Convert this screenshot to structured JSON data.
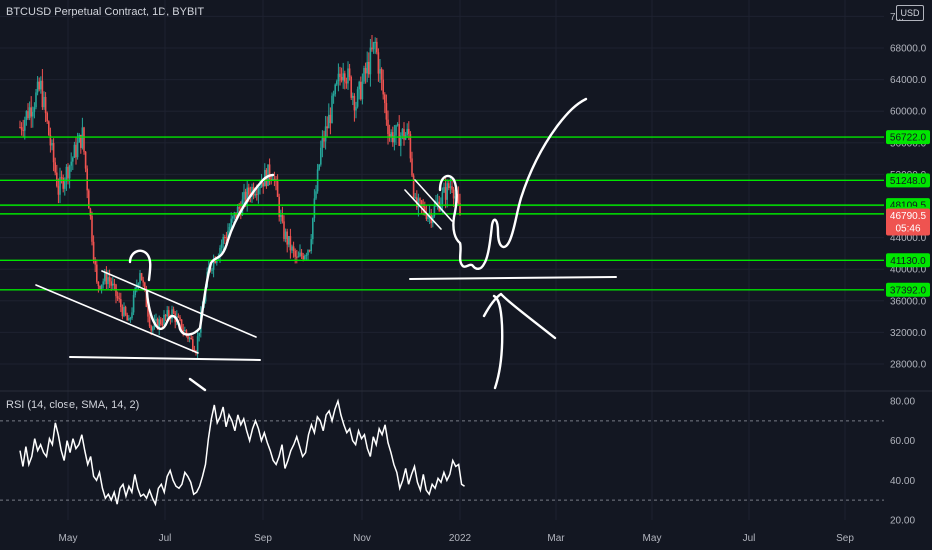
{
  "header": {
    "title": "BTCUSD Perpetual Contract, 1D, BYBIT",
    "currency": "USD"
  },
  "rsi": {
    "title": "RSI (14, close, SMA, 14, 2)"
  },
  "colors": {
    "background": "#131722",
    "level_line": "#00e600",
    "up": "#26a69a",
    "down": "#ef5350",
    "drawing": "#ffffff",
    "rsi_line": "#ffffff"
  },
  "chart_data": [
    {
      "type": "candlestick",
      "title": "BTCUSD Perpetual Contract, 1D, BYBIT",
      "y_axis": {
        "labels": [
          "7...",
          "68000.0",
          "64000.0",
          "60000.0",
          "56000.0",
          "52000.0",
          "48000.0",
          "44000.0",
          "40000.0",
          "36000.0",
          "32000.0",
          "28000.0"
        ],
        "values": [
          72000,
          68000,
          64000,
          60000,
          56000,
          52000,
          48000,
          44000,
          40000,
          36000,
          32000,
          28000
        ]
      },
      "x_axis": {
        "labels": [
          "May",
          "Jul",
          "Sep",
          "Nov",
          "2022",
          "Mar",
          "May",
          "Jul",
          "Sep"
        ]
      },
      "levels": [
        {
          "label": "56722.0",
          "value": 56722
        },
        {
          "label": "51248.0",
          "value": 51248
        },
        {
          "label": "48109.5",
          "value": 48109.5
        },
        {
          "label": "47003.5",
          "value": 47003.5
        },
        {
          "label": "41130.0",
          "value": 41130
        },
        {
          "label": "37392.0",
          "value": 37392
        }
      ],
      "last_price": {
        "label": "46790.5",
        "countdown": "05:46",
        "value": 46790.5
      },
      "price_path": [
        [
          "2021-04-01",
          58000
        ],
        [
          "2021-04-14",
          63000
        ],
        [
          "2021-04-25",
          50000
        ],
        [
          "2021-05-10",
          57000
        ],
        [
          "2021-05-19",
          38000
        ],
        [
          "2021-05-26",
          39000
        ],
        [
          "2021-06-08",
          33000
        ],
        [
          "2021-06-15",
          40000
        ],
        [
          "2021-06-22",
          32500
        ],
        [
          "2021-07-05",
          34500
        ],
        [
          "2021-07-20",
          30000
        ],
        [
          "2021-07-28",
          40000
        ],
        [
          "2021-08-14",
          47000
        ],
        [
          "2021-08-23",
          50000
        ],
        [
          "2021-09-06",
          52500
        ],
        [
          "2021-09-12",
          45000
        ],
        [
          "2021-09-21",
          41000
        ],
        [
          "2021-09-29",
          43000
        ],
        [
          "2021-10-06",
          55000
        ],
        [
          "2021-10-20",
          66000
        ],
        [
          "2021-10-28",
          61000
        ],
        [
          "2021-11-09",
          68500
        ],
        [
          "2021-11-18",
          57000
        ],
        [
          "2021-11-30",
          57000
        ],
        [
          "2021-12-04",
          48000
        ],
        [
          "2021-12-14",
          47000
        ],
        [
          "2021-12-27",
          51000
        ],
        [
          "2022-01-01",
          46790.5
        ]
      ]
    },
    {
      "type": "line",
      "title": "RSI (14, close, SMA, 14, 2)",
      "y_axis": {
        "labels": [
          "80.00",
          "60.00",
          "40.00",
          "20.00"
        ],
        "values": [
          80,
          60,
          40,
          20
        ]
      },
      "bands": [
        70,
        30
      ],
      "series": [
        {
          "values": [
            55,
            47,
            57,
            48,
            52,
            61,
            55,
            58,
            54,
            52,
            61,
            58,
            69,
            63,
            55,
            50,
            60,
            54,
            61,
            56,
            58,
            63,
            55,
            48,
            52,
            42,
            40,
            44,
            36,
            31,
            33,
            30,
            34,
            28,
            36,
            38,
            32,
            37,
            34,
            43,
            36,
            32,
            33,
            31,
            35,
            31,
            28,
            36,
            38,
            34,
            42,
            45,
            40,
            37,
            36,
            38,
            44,
            42,
            39,
            33,
            34,
            37,
            42,
            48,
            61,
            71,
            78,
            69,
            72,
            77,
            67,
            73,
            70,
            65,
            73,
            68,
            71,
            65,
            60,
            66,
            70,
            66,
            60,
            64,
            59,
            55,
            50,
            48,
            52,
            58,
            46,
            50,
            55,
            58,
            62,
            57,
            52,
            54,
            63,
            68,
            64,
            72,
            70,
            65,
            73,
            75,
            70,
            76,
            80,
            73,
            68,
            64,
            66,
            60,
            58,
            65,
            61,
            63,
            56,
            52,
            62,
            58,
            66,
            63,
            68,
            59,
            54,
            48,
            44,
            36,
            40,
            46,
            38,
            43,
            47,
            39,
            35,
            43,
            35,
            33,
            38,
            36,
            41,
            39,
            44,
            40,
            43,
            50,
            47,
            48,
            38,
            37
          ]
        }
      ]
    }
  ]
}
